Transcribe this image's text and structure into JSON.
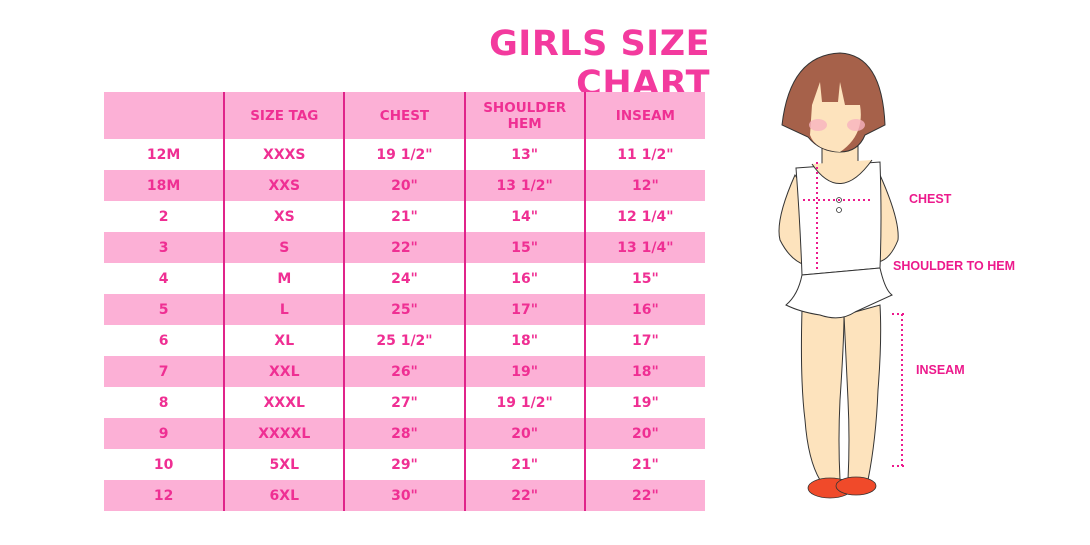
{
  "title": "GIRLS SIZE CHART",
  "table": {
    "headers": [
      "",
      "SIZE TAG",
      "CHEST",
      "SHOULDER HEM",
      "INSEAM"
    ],
    "rows": [
      [
        "12M",
        "XXXS",
        "19 1/2\"",
        "13\"",
        "11 1/2\""
      ],
      [
        "18M",
        "XXS",
        "20\"",
        "13 1/2\"",
        "12\""
      ],
      [
        "2",
        "XS",
        "21\"",
        "14\"",
        "12 1/4\""
      ],
      [
        "3",
        "S",
        "22\"",
        "15\"",
        "13 1/4\""
      ],
      [
        "4",
        "M",
        "24\"",
        "16\"",
        "15\""
      ],
      [
        "5",
        "L",
        "25\"",
        "17\"",
        "16\""
      ],
      [
        "6",
        "XL",
        "25 1/2\"",
        "18\"",
        "17\""
      ],
      [
        "7",
        "XXL",
        "26\"",
        "19\"",
        "18\""
      ],
      [
        "8",
        "XXXL",
        "27\"",
        "19 1/2\"",
        "19\""
      ],
      [
        "9",
        "XXXXL",
        "28\"",
        "20\"",
        "20\""
      ],
      [
        "10",
        "5XL",
        "29\"",
        "21\"",
        "21\""
      ],
      [
        "12",
        "6XL",
        "30\"",
        "22\"",
        "22\""
      ]
    ]
  },
  "figure": {
    "labels": {
      "chest": "CHEST",
      "shoulder": "SHOULDER TO HEM",
      "inseam": "INSEAM"
    }
  },
  "colors": {
    "accent": "#f33a9e",
    "row_pink": "#fcb0d6",
    "divider": "#e0248a"
  }
}
